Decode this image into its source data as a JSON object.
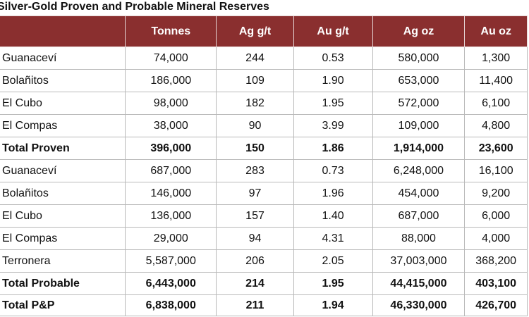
{
  "title": "Silver-Gold Proven and Probable Mineral Reserves",
  "table": {
    "headers": [
      "",
      "Tonnes",
      "Ag g/t",
      "Au g/t",
      "Ag oz",
      "Au oz"
    ],
    "rows": [
      {
        "label": "Guanaceví",
        "values": [
          "74,000",
          "244",
          "0.53",
          "580,000",
          "1,300"
        ],
        "total": false
      },
      {
        "label": "Bolañitos",
        "values": [
          "186,000",
          "109",
          "1.90",
          "653,000",
          "11,400"
        ],
        "total": false
      },
      {
        "label": "El Cubo",
        "values": [
          "98,000",
          "182",
          "1.95",
          "572,000",
          "6,100"
        ],
        "total": false
      },
      {
        "label": "El Compas",
        "values": [
          "38,000",
          "90",
          "3.99",
          "109,000",
          "4,800"
        ],
        "total": false
      },
      {
        "label": "Total Proven",
        "values": [
          "396,000",
          "150",
          "1.86",
          "1,914,000",
          "23,600"
        ],
        "total": true
      },
      {
        "label": "Guanaceví",
        "values": [
          "687,000",
          "283",
          "0.73",
          "6,248,000",
          "16,100"
        ],
        "total": false
      },
      {
        "label": "Bolañitos",
        "values": [
          "146,000",
          "97",
          "1.96",
          "454,000",
          "9,200"
        ],
        "total": false
      },
      {
        "label": "El Cubo",
        "values": [
          "136,000",
          "157",
          "1.40",
          "687,000",
          "6,000"
        ],
        "total": false
      },
      {
        "label": "El Compas",
        "values": [
          "29,000",
          "94",
          "4.31",
          "88,000",
          "4,000"
        ],
        "total": false
      },
      {
        "label": "Terronera",
        "values": [
          "5,587,000",
          "206",
          "2.05",
          "37,003,000",
          "368,200"
        ],
        "total": false
      },
      {
        "label": "Total Probable",
        "values": [
          "6,443,000",
          "214",
          "1.95",
          "44,415,000",
          "403,100"
        ],
        "total": true
      },
      {
        "label": "Total P&P",
        "values": [
          "6,838,000",
          "211",
          "1.94",
          "46,330,000",
          "426,700"
        ],
        "total": true
      }
    ]
  },
  "colors": {
    "header_background": "#8a2f2f",
    "header_text": "#ffffff",
    "grid_lines": "#b9b9b9"
  }
}
